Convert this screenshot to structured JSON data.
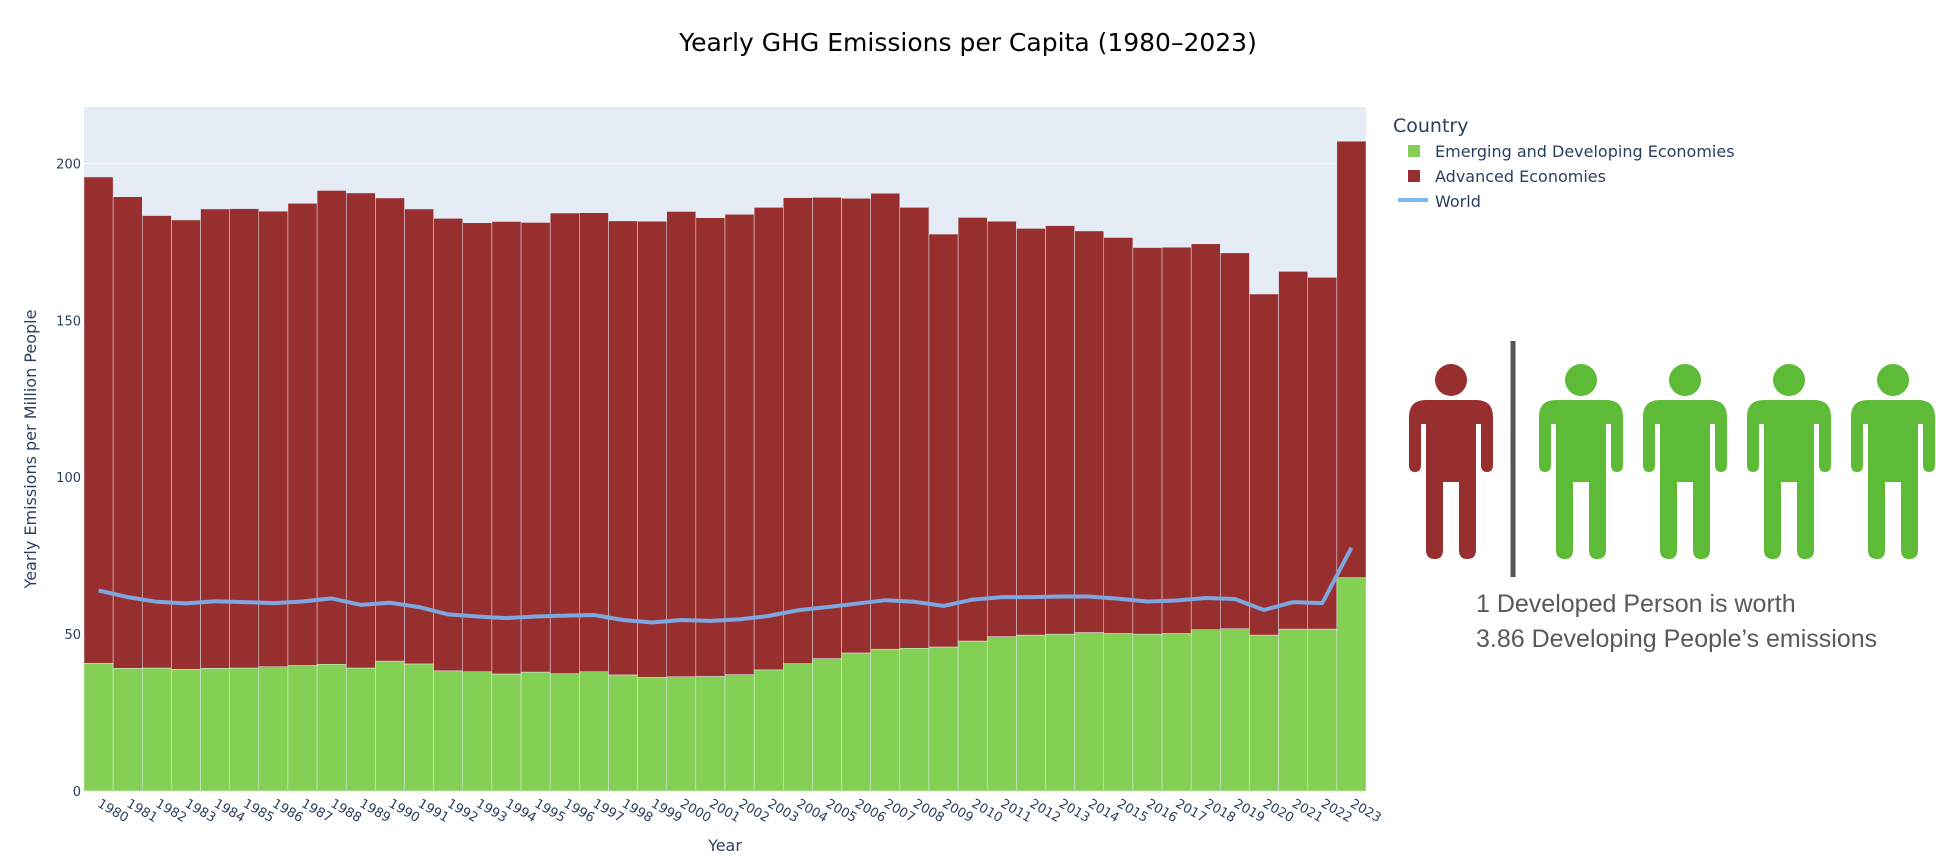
{
  "chart_data": {
    "type": "bar",
    "barmode": "stack",
    "title": "Yearly GHG Emissions per Capita (1980–2023)",
    "xlabel": "Year",
    "ylabel": "Yearly Emissions per Million People",
    "ylim": [
      0,
      218
    ],
    "yticks": [
      0,
      50,
      100,
      150,
      200
    ],
    "grid": true,
    "legend": {
      "title": "Country",
      "position": "top-right"
    },
    "categories": [
      1980,
      1981,
      1982,
      1983,
      1984,
      1985,
      1986,
      1987,
      1988,
      1989,
      1990,
      1991,
      1992,
      1993,
      1994,
      1995,
      1996,
      1997,
      1998,
      1999,
      2000,
      2001,
      2002,
      2003,
      2004,
      2005,
      2006,
      2007,
      2008,
      2009,
      2010,
      2011,
      2012,
      2013,
      2014,
      2015,
      2016,
      2017,
      2018,
      2019,
      2020,
      2021,
      2022,
      2023
    ],
    "series": [
      {
        "name": "Emerging and Developing Economies",
        "type": "bar",
        "color": "#83d055",
        "values": [
          40.7,
          39.1,
          39.2,
          38.8,
          39.1,
          39.2,
          39.6,
          40.0,
          40.4,
          39.2,
          41.4,
          40.5,
          38.3,
          38.0,
          37.3,
          37.9,
          37.4,
          38.0,
          37.0,
          36.2,
          36.4,
          36.5,
          37.1,
          38.6,
          40.6,
          42.2,
          44.0,
          45.2,
          45.5,
          45.9,
          47.8,
          49.2,
          49.7,
          50.0,
          50.5,
          50.2,
          50.0,
          50.2,
          51.4,
          51.7,
          49.7,
          51.6,
          51.6,
          68.0
        ]
      },
      {
        "name": "Advanced Economies",
        "type": "bar",
        "color": "#982f2f",
        "values": [
          155.0,
          150.3,
          144.2,
          143.2,
          146.4,
          146.4,
          145.2,
          147.3,
          151.0,
          151.4,
          147.6,
          145.0,
          144.2,
          143.1,
          144.2,
          143.3,
          146.8,
          146.3,
          144.7,
          145.4,
          148.3,
          146.2,
          146.7,
          147.4,
          148.5,
          147.0,
          144.9,
          145.3,
          140.5,
          131.6,
          135.0,
          132.4,
          129.6,
          130.2,
          128.0,
          126.2,
          123.2,
          123.1,
          123.0,
          119.8,
          108.7,
          114.0,
          112.1,
          139.1
        ]
      },
      {
        "name": "World",
        "type": "line",
        "color": "#7da7e0",
        "values": [
          63.9,
          61.8,
          60.3,
          59.8,
          60.5,
          60.2,
          59.9,
          60.4,
          61.4,
          59.3,
          60.0,
          58.6,
          56.3,
          55.6,
          55.1,
          55.6,
          55.9,
          56.1,
          54.5,
          53.7,
          54.5,
          54.2,
          54.7,
          55.8,
          57.6,
          58.6,
          59.7,
          60.8,
          60.3,
          59.0,
          61.0,
          61.8,
          61.8,
          62.0,
          62.0,
          61.3,
          60.4,
          60.7,
          61.5,
          61.2,
          57.7,
          60.2,
          59.9,
          77.5
        ]
      }
    ]
  },
  "infographic": {
    "developed_color": "#982f2f",
    "developing_color": "#5dbb37",
    "developed_count": 1,
    "developing_count": 4,
    "caption_line1": "1 Developed Person is worth",
    "caption_line2": "3.86 Developing People’s emissions"
  }
}
